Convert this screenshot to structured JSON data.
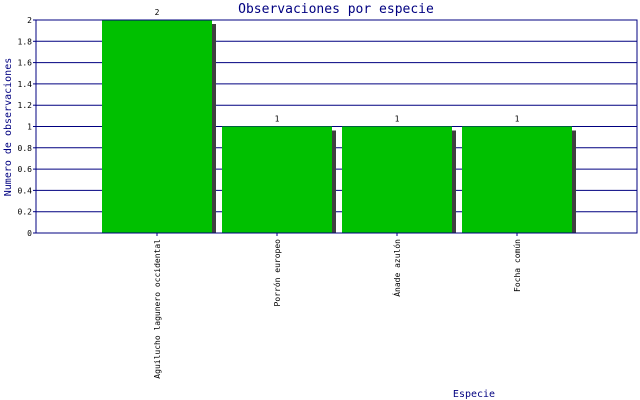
{
  "chart_data": {
    "type": "bar",
    "title": "Observaciones por especie",
    "xlabel": "Especie",
    "ylabel": "Numero de observaciones",
    "categories": [
      "Aguilucho lagunero occidental",
      "Porrón europeo",
      "Ánade azulón",
      "Focha común"
    ],
    "values": [
      2,
      1,
      1,
      1
    ],
    "data_labels": [
      "2",
      "1",
      "1",
      "1"
    ],
    "ylim": [
      0,
      2
    ],
    "yticks": [
      "0",
      "0.2",
      "0.4",
      "0.6",
      "0.8",
      "1",
      "1.2",
      "1.4",
      "1.6",
      "1.8",
      "2"
    ],
    "grid": true,
    "colors": {
      "bar": "#00c000",
      "shadow": "#404040",
      "grid": "#000080",
      "axis": "#000080",
      "title": "#000080"
    }
  }
}
